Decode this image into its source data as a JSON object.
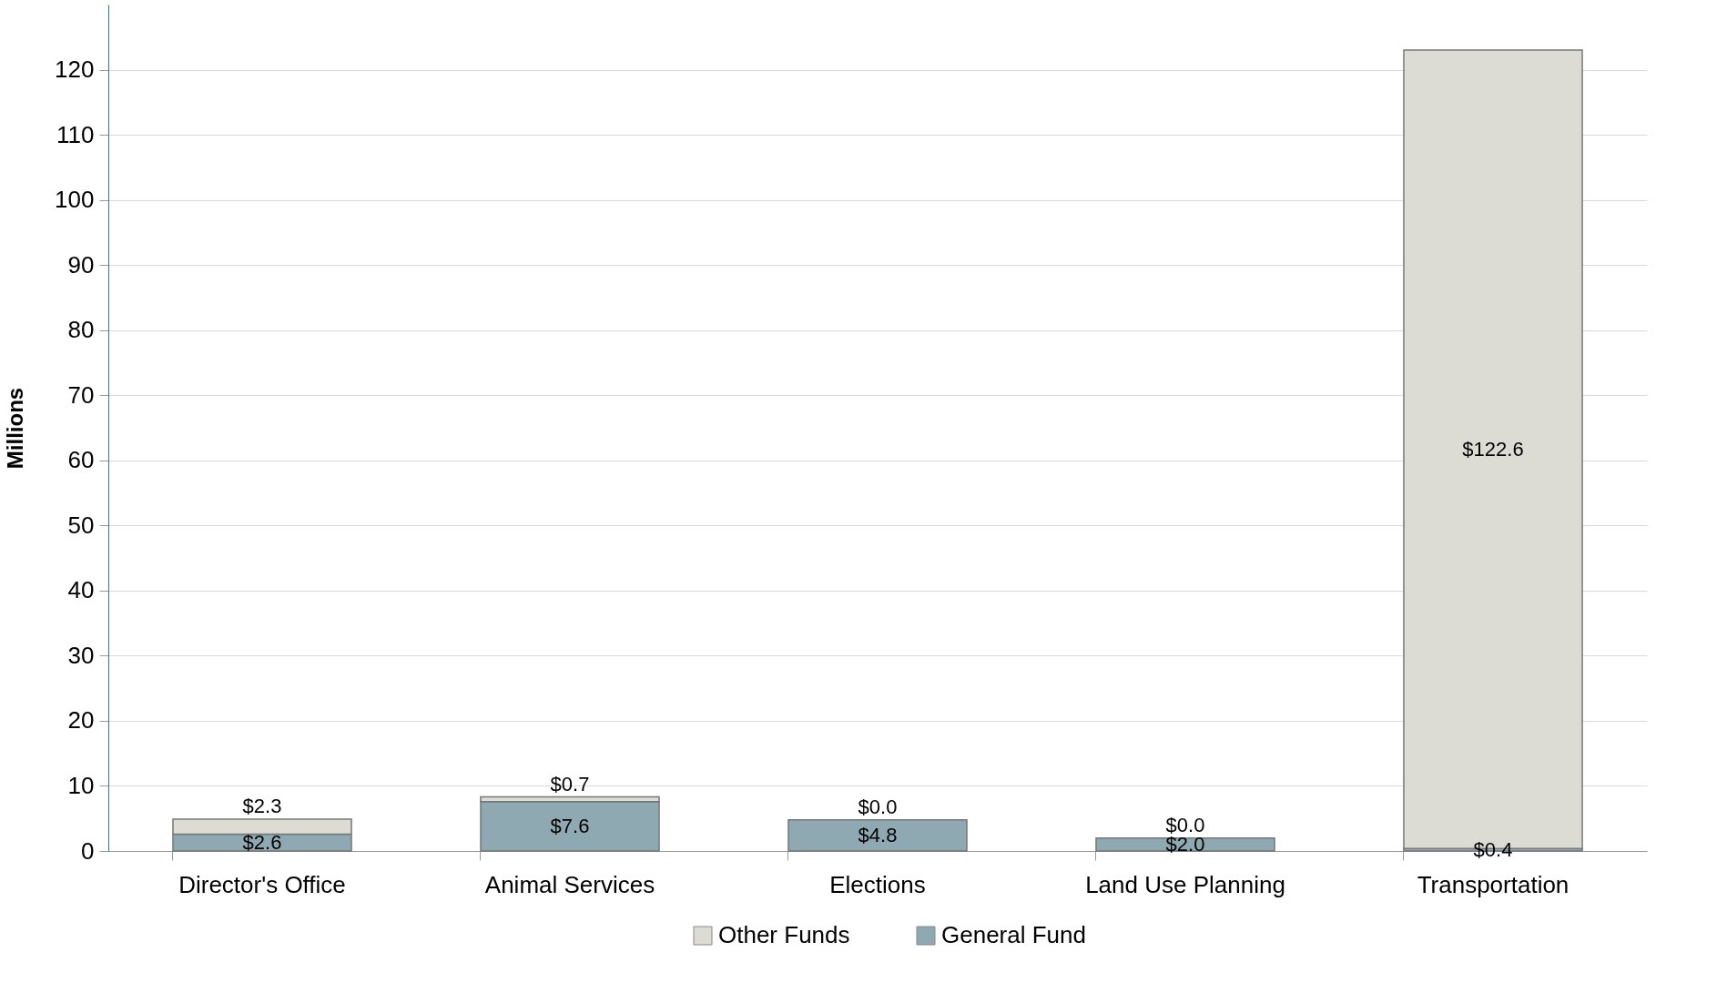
{
  "chart_data": {
    "type": "bar",
    "stacked": true,
    "ylabel": "Millions",
    "categories": [
      "Director's Office",
      "Animal Services",
      "Elections",
      "Land Use Planning",
      "Transportation"
    ],
    "series": [
      {
        "name": "General Fund",
        "color": "#8fa9b3",
        "values": [
          2.6,
          7.6,
          4.8,
          2.0,
          0.4
        ],
        "value_labels": [
          "$2.6",
          "$7.6",
          "$4.8",
          "$2.0",
          "$0.4"
        ]
      },
      {
        "name": "Other Funds",
        "color": "#dddcd4",
        "values": [
          2.3,
          0.7,
          0.0,
          0.0,
          122.6
        ],
        "value_labels": [
          "$2.3",
          "$0.7",
          "$0.0",
          "$0.0",
          "$122.6"
        ]
      }
    ],
    "ylim": [
      0,
      130
    ],
    "yticks": [
      0,
      10,
      20,
      30,
      40,
      50,
      60,
      70,
      80,
      90,
      100,
      110,
      120
    ],
    "grid": "y",
    "legend": "bottom"
  }
}
